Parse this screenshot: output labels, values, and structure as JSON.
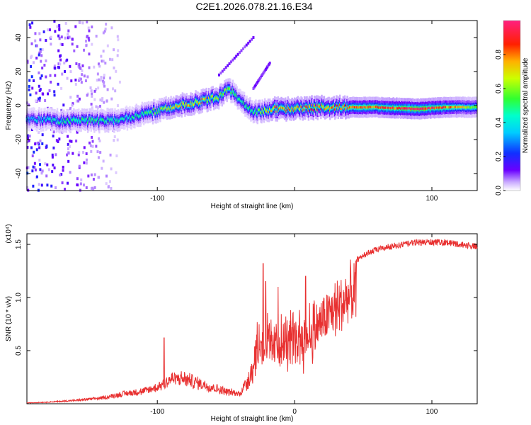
{
  "figure_title": "C2E1.2026.078.21.16.E34",
  "chart_data": [
    {
      "type": "heatmap",
      "title": "C2E1.2026.078.21.16.E34",
      "xlabel": "Height of straight line (km)",
      "ylabel": "Frequency (Hz)",
      "xlim": [
        -195,
        133
      ],
      "ylim": [
        -50,
        50
      ],
      "xticks": [
        -100,
        0,
        100
      ],
      "yticks": [
        -40,
        -20,
        0,
        20,
        40
      ],
      "xtick_labels": [
        "-100",
        "",
        "100"
      ],
      "ytick_labels": [
        "-40",
        "-20",
        "0",
        "20",
        "40"
      ],
      "colorbar": {
        "label": "Normalized spectral amplitude",
        "range": [
          0,
          1
        ],
        "ticks": [
          0.0,
          0.2,
          0.4,
          0.6,
          0.8
        ],
        "tick_labels": [
          "0.0",
          "0.2",
          "0.4",
          "0.6",
          "0.8"
        ]
      },
      "ridge": {
        "description_points": [
          {
            "x": -190,
            "y": -8,
            "amp": 0.35
          },
          {
            "x": -170,
            "y": -9,
            "amp": 0.45
          },
          {
            "x": -150,
            "y": -9,
            "amp": 0.5
          },
          {
            "x": -130,
            "y": -9,
            "amp": 0.45
          },
          {
            "x": -115,
            "y": -6,
            "amp": 0.45
          },
          {
            "x": -100,
            "y": -3,
            "amp": 0.55
          },
          {
            "x": -85,
            "y": 0,
            "amp": 0.7
          },
          {
            "x": -70,
            "y": 2,
            "amp": 0.7
          },
          {
            "x": -55,
            "y": 5,
            "amp": 0.65
          },
          {
            "x": -48,
            "y": 10,
            "amp": 0.6
          },
          {
            "x": -40,
            "y": 4,
            "amp": 0.45
          },
          {
            "x": -30,
            "y": -4,
            "amp": 0.5
          },
          {
            "x": -15,
            "y": -2,
            "amp": 0.75
          },
          {
            "x": 0,
            "y": -2,
            "amp": 0.8
          },
          {
            "x": 20,
            "y": -1,
            "amp": 0.8
          },
          {
            "x": 60,
            "y": -1,
            "amp": 0.8
          },
          {
            "x": 90,
            "y": -2,
            "amp": 0.95
          },
          {
            "x": 110,
            "y": -1,
            "amp": 0.8
          },
          {
            "x": 130,
            "y": -1,
            "amp": 0.6
          }
        ]
      }
    },
    {
      "type": "line",
      "xlabel": "Height of straight line (km)",
      "ylabel": "SNR (10 * v/v)",
      "y_multiplier": "(x10⁴)",
      "xlim": [
        -195,
        133
      ],
      "ylim": [
        0,
        1.6
      ],
      "xticks": [
        -100,
        0,
        100
      ],
      "yticks": [
        0.5,
        1.0,
        1.5
      ],
      "xtick_labels": [
        "-100",
        "0",
        "100"
      ],
      "ytick_labels": [
        "0.5",
        "1.0",
        "1.5"
      ],
      "series": [
        {
          "name": "SNR",
          "color": "#e83030",
          "envelope_x": [
            -195,
            -180,
            -160,
            -140,
            -125,
            -110,
            -100,
            -90,
            -80,
            -70,
            -60,
            -50,
            -40,
            -32,
            -27,
            -22,
            -17,
            -12,
            -5,
            0,
            5,
            10,
            20,
            30,
            40,
            50,
            60,
            70,
            80,
            90,
            100,
            110,
            120,
            133
          ],
          "envelope_y": [
            0.01,
            0.02,
            0.04,
            0.07,
            0.12,
            0.15,
            0.2,
            0.3,
            0.3,
            0.25,
            0.2,
            0.15,
            0.12,
            0.35,
            0.7,
            0.8,
            0.7,
            0.7,
            0.75,
            0.8,
            0.82,
            0.85,
            1.0,
            1.15,
            1.3,
            1.4,
            1.45,
            1.48,
            1.5,
            1.52,
            1.52,
            1.52,
            1.5,
            1.48
          ],
          "spikes": [
            {
              "x": -95,
              "y": 0.62
            },
            {
              "x": -23,
              "y": 1.32
            },
            {
              "x": -21,
              "y": 1.15
            },
            {
              "x": -12,
              "y": 1.1
            },
            {
              "x": 8,
              "y": 1.2
            }
          ]
        }
      ]
    }
  ]
}
